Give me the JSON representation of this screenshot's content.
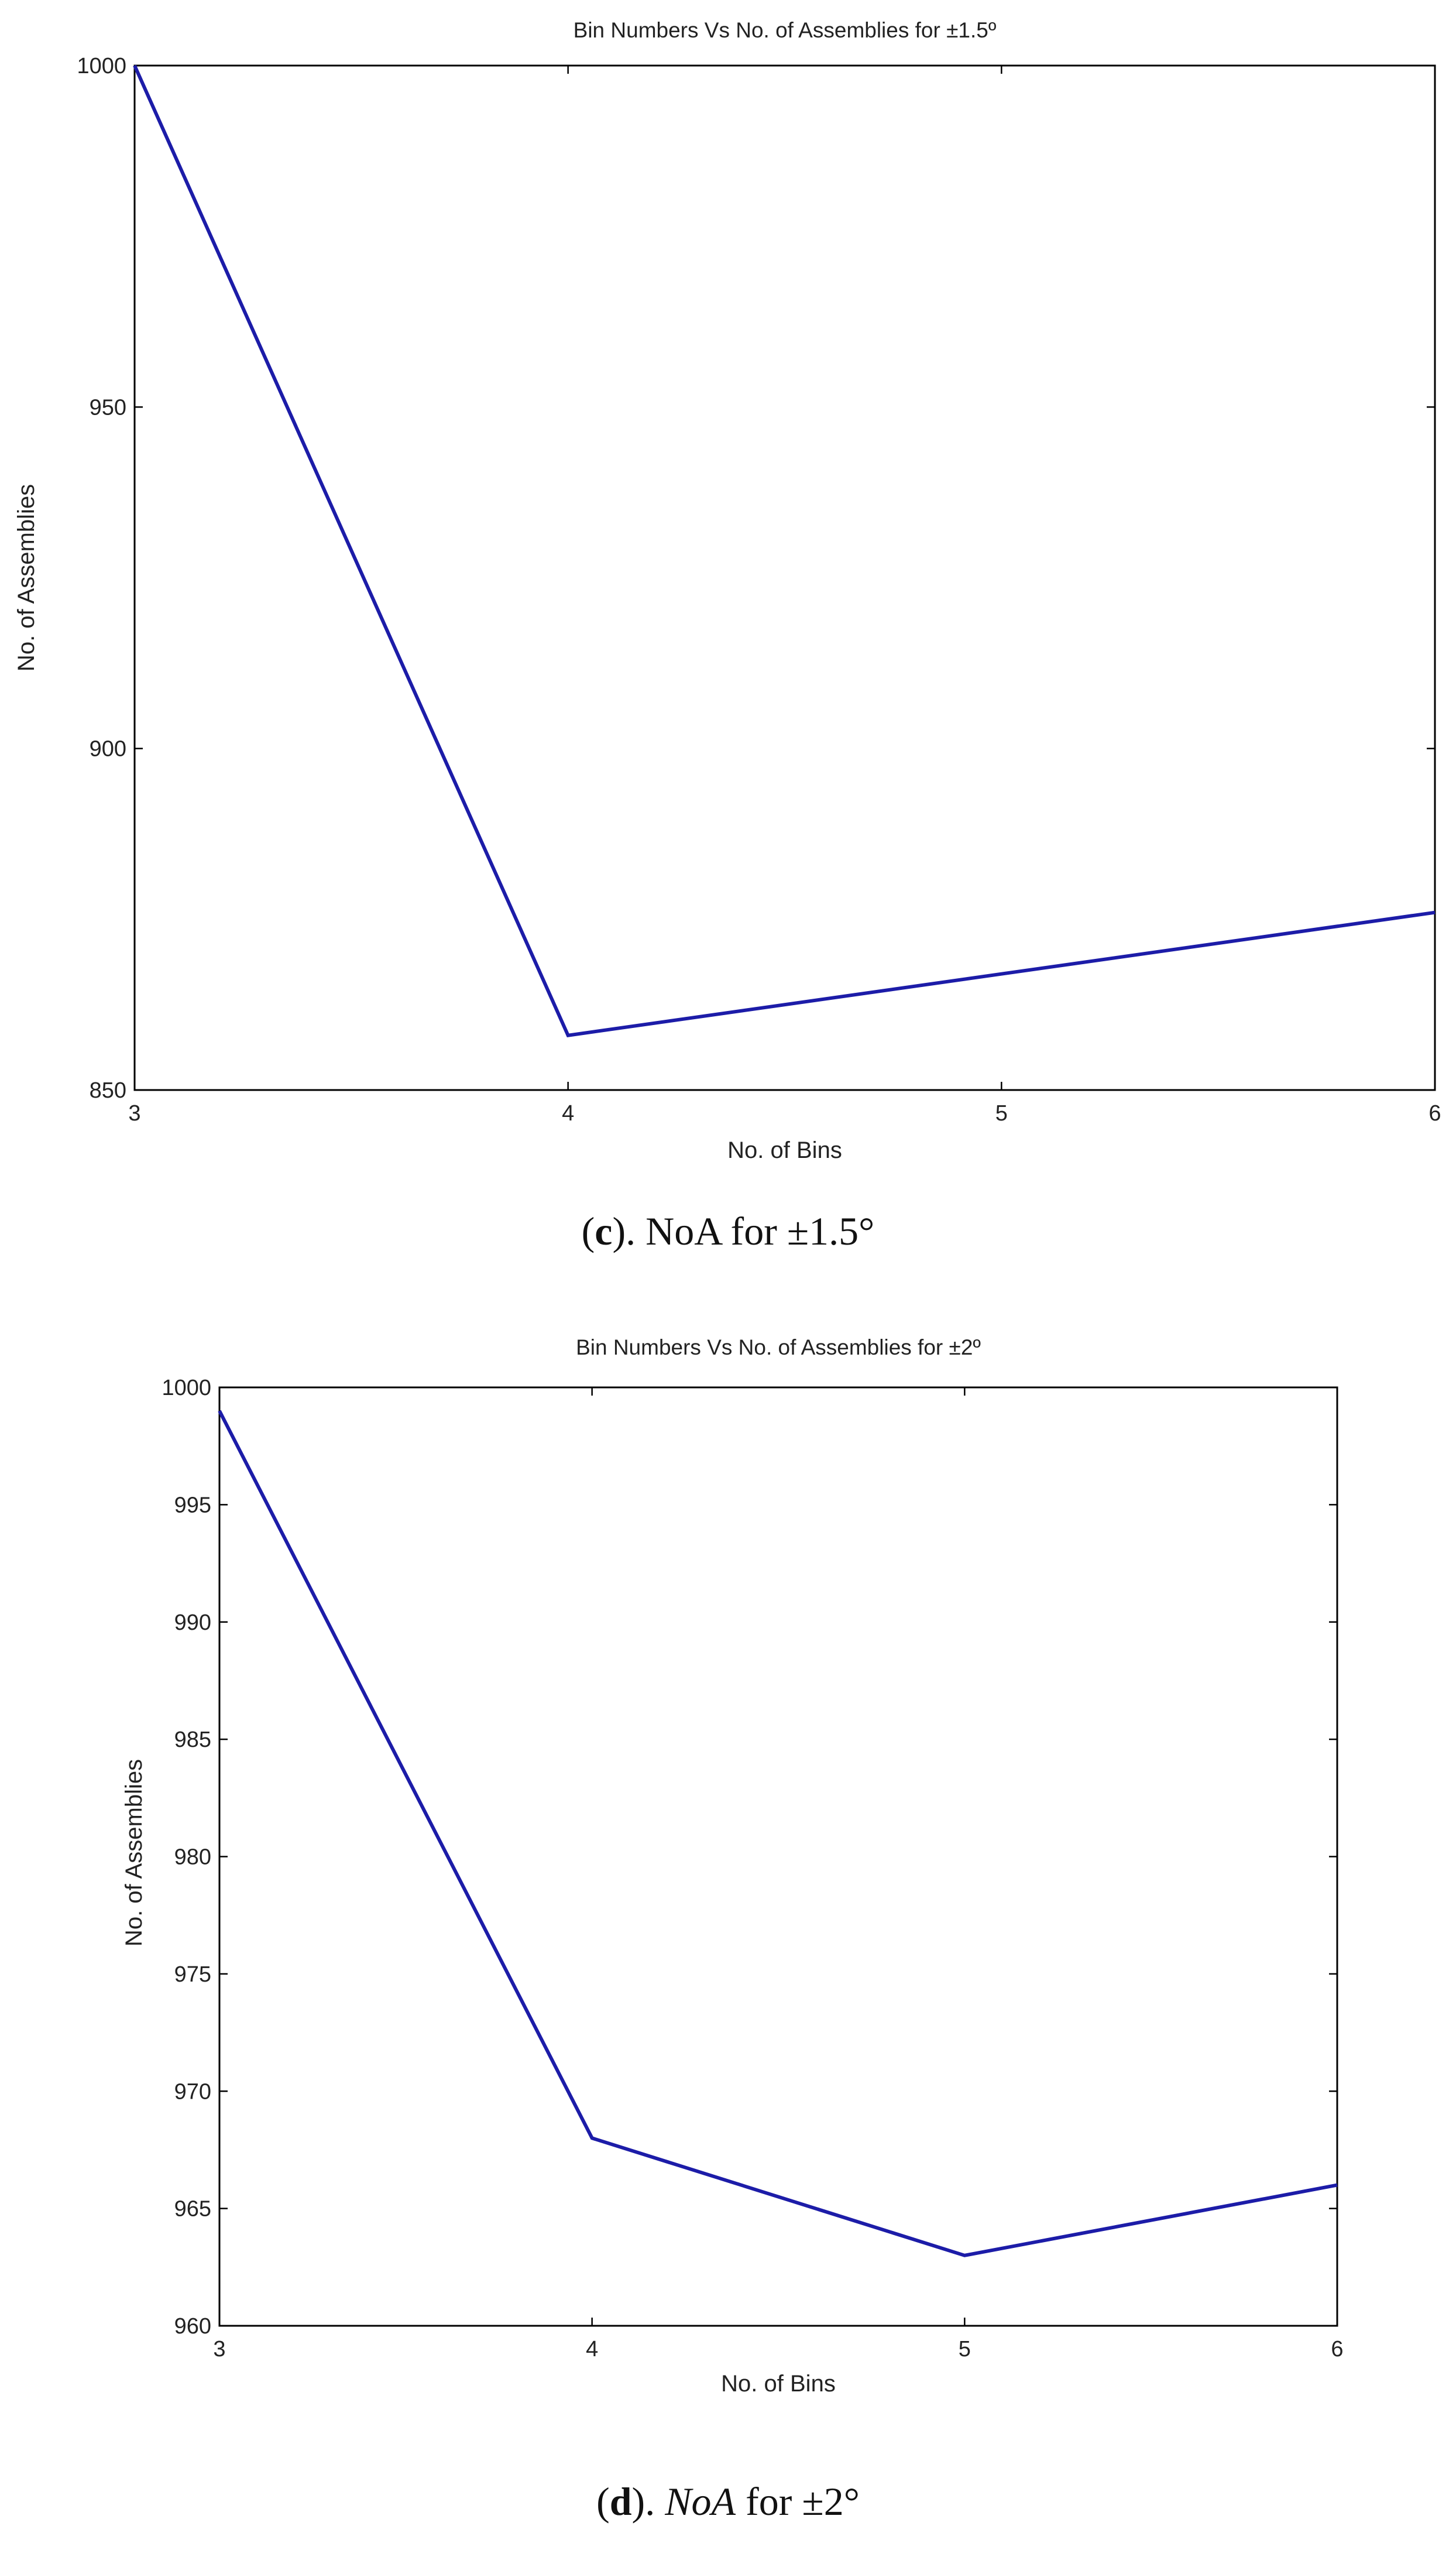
{
  "chart_data": [
    {
      "type": "line",
      "title": "Bin Numbers Vs No. of Assemblies for ±1.5º",
      "xlabel": "No. of Bins",
      "ylabel": "No. of Assemblies",
      "x": [
        3,
        4,
        5,
        6
      ],
      "series": [
        {
          "values": [
            1000,
            858,
            867,
            876
          ],
          "color": "#1c1ca8"
        }
      ],
      "xlim": [
        3,
        6
      ],
      "ylim": [
        850,
        1000
      ],
      "xticks": [
        3,
        4,
        5,
        6
      ],
      "yticks": [
        850,
        900,
        950,
        1000
      ],
      "grid": false,
      "caption": {
        "letter": "c",
        "rest": "). NoA for ±1.5°",
        "open": "(",
        "italic": ""
      }
    },
    {
      "type": "line",
      "title": "Bin Numbers Vs No. of Assemblies for ±2º",
      "xlabel": "No. of Bins",
      "ylabel": "No. of Assemblies",
      "x": [
        3,
        4,
        5,
        6
      ],
      "series": [
        {
          "values": [
            999,
            968,
            963,
            966
          ],
          "color": "#1c1ca8"
        }
      ],
      "xlim": [
        3,
        6
      ],
      "ylim": [
        960,
        1000
      ],
      "xticks": [
        3,
        4,
        5,
        6
      ],
      "yticks": [
        960,
        965,
        970,
        975,
        980,
        985,
        990,
        995,
        1000
      ],
      "grid": false,
      "caption": {
        "letter": "d",
        "open": "(",
        "rest_before": "). ",
        "italic": "NoA",
        "rest": " for ±2°"
      }
    }
  ]
}
